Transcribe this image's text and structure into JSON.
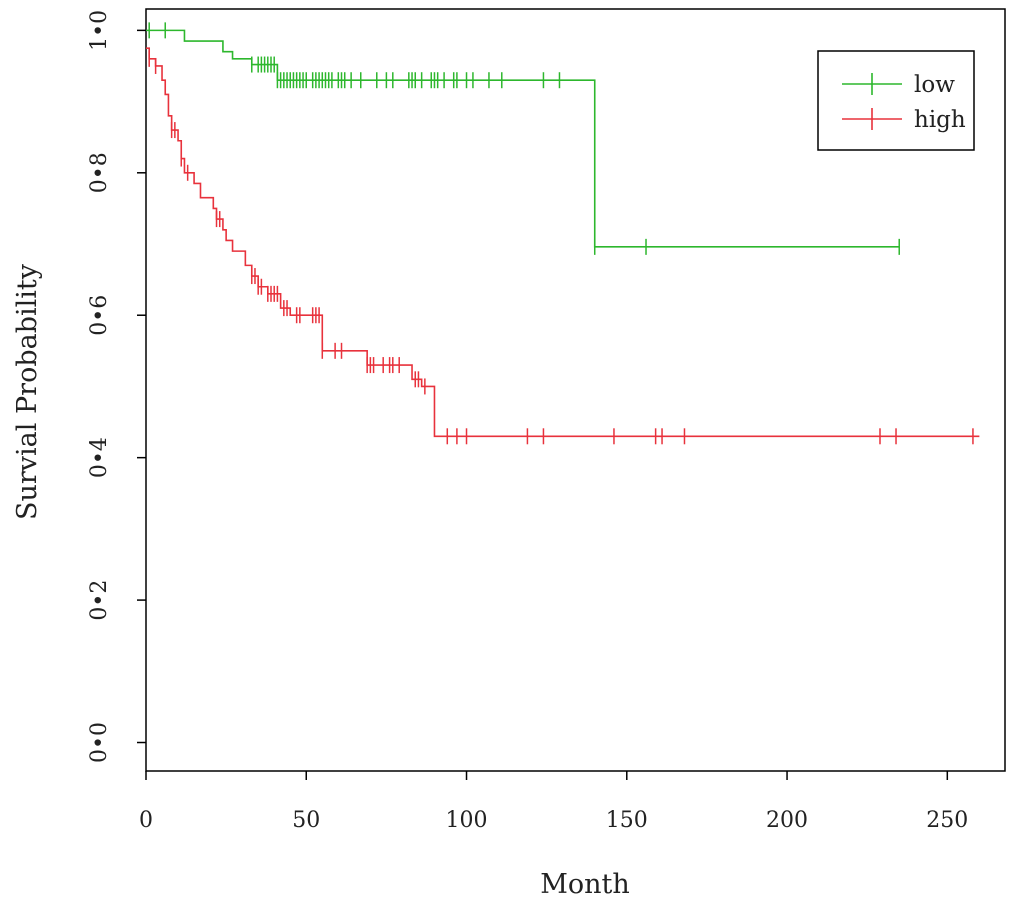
{
  "chart_data": {
    "type": "line",
    "subtype": "kaplan-meier",
    "title": "",
    "xlabel": "Month",
    "ylabel": "Survial Probability",
    "xlim": [
      0,
      268
    ],
    "ylim": [
      -0.04,
      1.03
    ],
    "x_ticks": [
      0,
      50,
      100,
      150,
      200,
      250
    ],
    "x_tick_labels": [
      "0",
      "50",
      "100",
      "150",
      "200",
      "250"
    ],
    "y_ticks": [
      0.0,
      0.2,
      0.4,
      0.6,
      0.8,
      1.0
    ],
    "y_tick_labels": [
      "0•0",
      "0•2",
      "0•4",
      "0•6",
      "0•8",
      "1•0"
    ],
    "grid": false,
    "legend": {
      "position": "top-right",
      "entries": [
        "low",
        "high"
      ]
    },
    "series": [
      {
        "name": "low",
        "color": "#2db72d",
        "steps": [
          [
            0,
            1.0
          ],
          [
            12,
            0.985
          ],
          [
            24,
            0.97
          ],
          [
            27,
            0.96
          ],
          [
            33,
            0.952
          ],
          [
            41,
            0.93
          ],
          [
            140,
            0.696
          ],
          [
            235,
            0.696
          ]
        ],
        "censor_x": [
          1,
          6,
          33,
          35,
          36,
          37,
          38,
          39,
          40,
          41,
          42,
          43,
          44,
          45,
          46,
          47,
          48,
          49,
          50,
          52,
          53,
          54,
          55,
          56,
          57,
          58,
          60,
          61,
          62,
          64,
          67,
          72,
          75,
          77,
          82,
          83,
          84,
          86,
          89,
          90,
          91,
          93,
          96,
          97,
          100,
          102,
          107,
          111,
          124,
          129,
          140,
          156,
          235
        ]
      },
      {
        "name": "high",
        "color": "#e8323c",
        "steps": [
          [
            0,
            0.975
          ],
          [
            1,
            0.96
          ],
          [
            3,
            0.95
          ],
          [
            5,
            0.93
          ],
          [
            6,
            0.91
          ],
          [
            7,
            0.88
          ],
          [
            8,
            0.86
          ],
          [
            10,
            0.845
          ],
          [
            11,
            0.82
          ],
          [
            12,
            0.8
          ],
          [
            15,
            0.785
          ],
          [
            17,
            0.765
          ],
          [
            21,
            0.75
          ],
          [
            22,
            0.735
          ],
          [
            24,
            0.72
          ],
          [
            25,
            0.705
          ],
          [
            27,
            0.69
          ],
          [
            31,
            0.67
          ],
          [
            33,
            0.655
          ],
          [
            35,
            0.64
          ],
          [
            38,
            0.63
          ],
          [
            42,
            0.61
          ],
          [
            45,
            0.6
          ],
          [
            55,
            0.55
          ],
          [
            59,
            0.55
          ],
          [
            69,
            0.53
          ],
          [
            83,
            0.51
          ],
          [
            86,
            0.5
          ],
          [
            90,
            0.43
          ],
          [
            260,
            0.43
          ]
        ],
        "censor_x": [
          1,
          3,
          8,
          9,
          11,
          13,
          22,
          23,
          33,
          34,
          35,
          36,
          38,
          39,
          40,
          41,
          43,
          44,
          47,
          48,
          52,
          53,
          54,
          55,
          59,
          61,
          69,
          70,
          71,
          74,
          76,
          77,
          79,
          84,
          85,
          87,
          94,
          97,
          100,
          119,
          124,
          146,
          159,
          161,
          168,
          229,
          234,
          258
        ]
      }
    ]
  }
}
